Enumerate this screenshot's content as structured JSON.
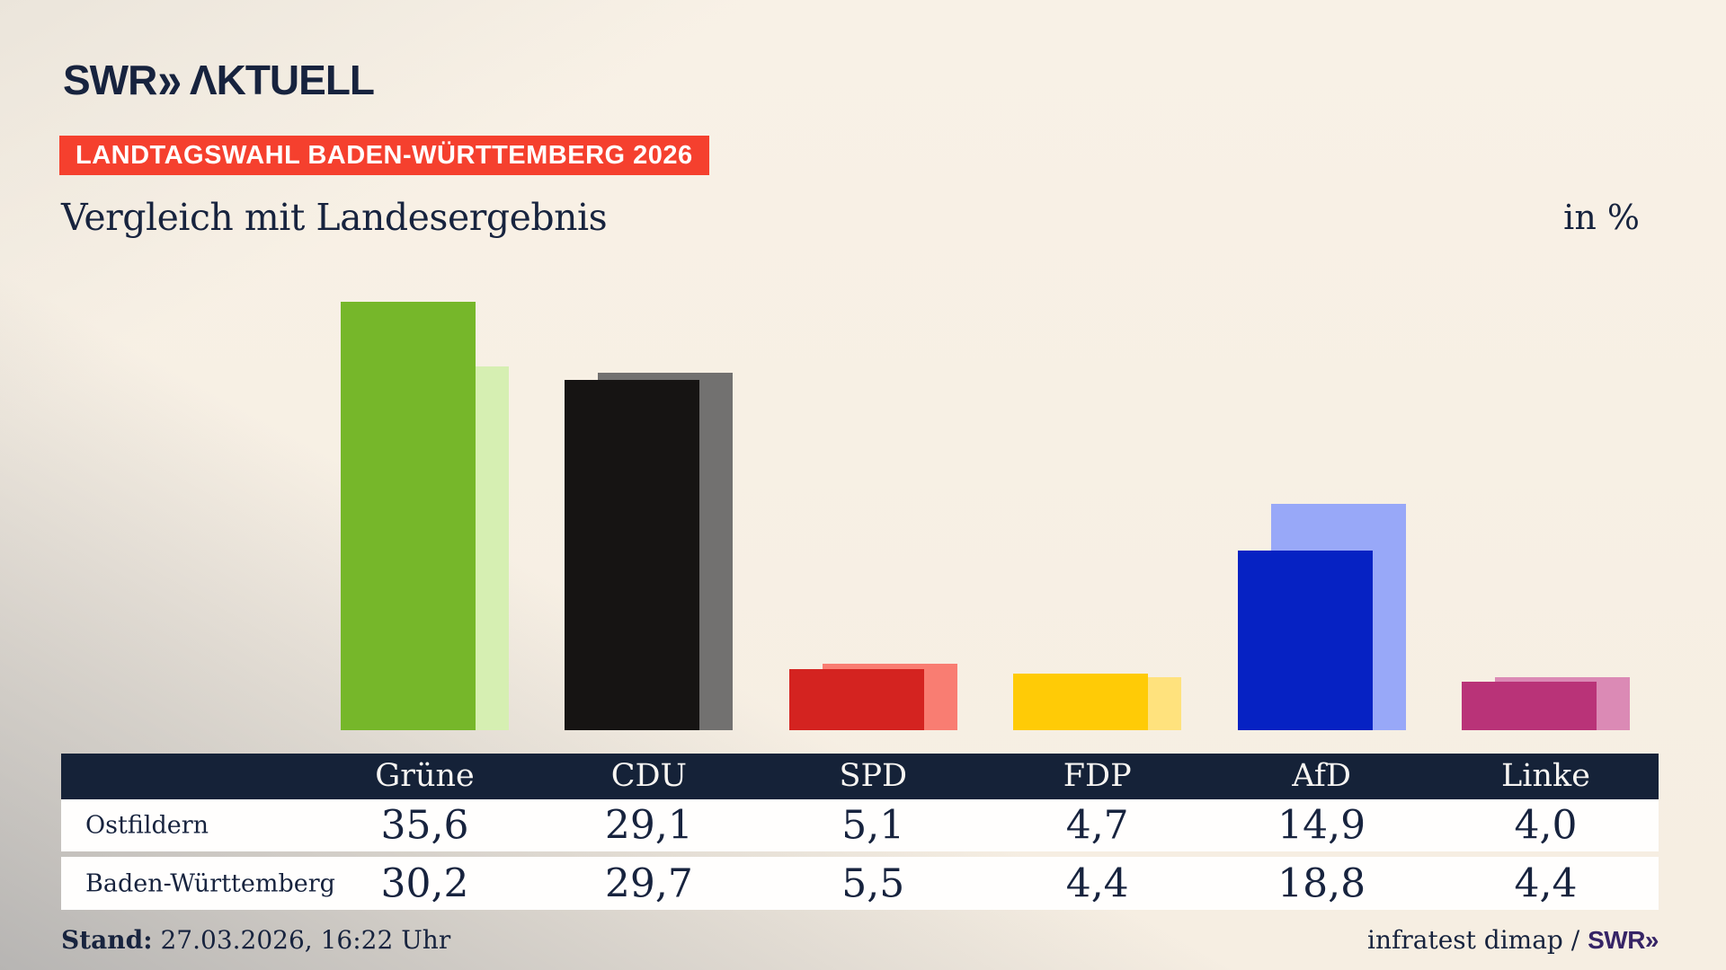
{
  "logo": {
    "swr": "SWR",
    "chevrons": "»",
    "aktuell": "ΛKTUELL"
  },
  "badge": {
    "label": "LANDTAGSWAHL BADEN-WÜRTTEMBERG 2026",
    "background": "#f5402e"
  },
  "chart_data": {
    "type": "bar",
    "title": "Vergleich mit Landesergebnis",
    "unit_label": "in %",
    "categories": [
      "Grüne",
      "CDU",
      "SPD",
      "FDP",
      "AfD",
      "Linke"
    ],
    "series": [
      {
        "name": "Ostfildern",
        "values": [
          35.6,
          29.1,
          5.1,
          4.7,
          14.9,
          4.0
        ],
        "colors": [
          "#76b72a",
          "#161413",
          "#d42320",
          "#ffcb06",
          "#0622c3",
          "#b93378"
        ]
      },
      {
        "name": "Baden-Württemberg",
        "values": [
          30.2,
          29.7,
          5.5,
          4.4,
          18.8,
          4.4
        ],
        "colors": [
          "#d6efb2",
          "#727170",
          "#f97d72",
          "#ffe27d",
          "#98a8f8",
          "#db8ab5"
        ]
      }
    ],
    "ylim": [
      0,
      40
    ],
    "grid": false,
    "legend_position": "table-below"
  },
  "table": {
    "header": [
      "Grüne",
      "CDU",
      "SPD",
      "FDP",
      "AfD",
      "Linke"
    ],
    "rows": [
      {
        "label": "Ostfildern",
        "values": [
          "35,6",
          "29,1",
          "5,1",
          "4,7",
          "14,9",
          "4,0"
        ]
      },
      {
        "label": "Baden-Württemberg",
        "values": [
          "30,2",
          "29,7",
          "5,5",
          "4,4",
          "18,8",
          "4,4"
        ]
      }
    ],
    "header_background": "#152238"
  },
  "footer": {
    "stand_label": "Stand:",
    "stand_value": " 27.03.2026, 16:22 Uhr",
    "source": "infratest dimap / ",
    "source_brand": "SWR»"
  },
  "colors": {
    "navy_text": "#17233e",
    "badge_red": "#f5402e",
    "background_beige": "#f7efe4",
    "brand_purple": "#362466"
  }
}
